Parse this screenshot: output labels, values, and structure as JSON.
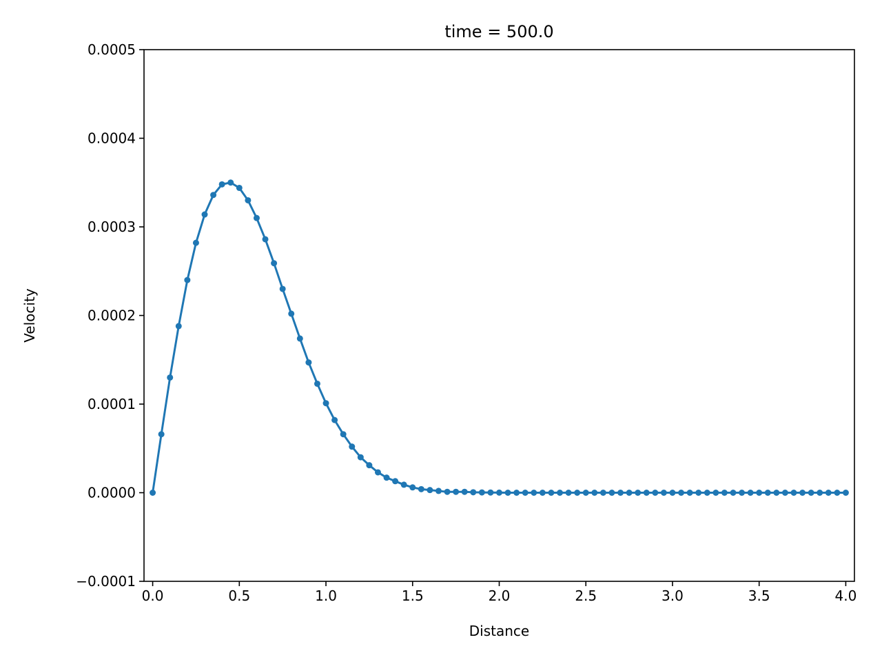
{
  "chart_data": {
    "type": "line",
    "title": "time = 500.0",
    "xlabel": "Distance",
    "ylabel": "Velocity",
    "xlim": [
      -0.05,
      4.05
    ],
    "ylim": [
      -0.0001,
      0.0005
    ],
    "grid": false,
    "legend": "none",
    "xticks": [
      "0.0",
      "0.5",
      "1.0",
      "1.5",
      "2.0",
      "2.5",
      "3.0",
      "3.5",
      "4.0"
    ],
    "xtick_values": [
      0.0,
      0.5,
      1.0,
      1.5,
      2.0,
      2.5,
      3.0,
      3.5,
      4.0
    ],
    "yticks": [
      "−0.0001",
      "0.0000",
      "0.0001",
      "0.0002",
      "0.0003",
      "0.0004",
      "0.0005"
    ],
    "ytick_values": [
      -0.0001,
      0.0,
      0.0001,
      0.0002,
      0.0003,
      0.0004,
      0.0005
    ],
    "color": "#1f77b4",
    "series": [
      {
        "marker": "dot",
        "x": [
          0.0,
          0.05,
          0.1,
          0.15,
          0.2,
          0.25,
          0.3,
          0.35,
          0.4,
          0.45,
          0.5,
          0.55,
          0.6,
          0.65,
          0.7,
          0.75,
          0.8,
          0.85,
          0.9,
          0.95,
          1.0,
          1.05,
          1.1,
          1.15,
          1.2,
          1.25,
          1.3,
          1.35,
          1.4,
          1.45,
          1.5,
          1.55,
          1.6,
          1.65,
          1.7,
          1.75,
          1.8,
          1.85,
          1.9,
          1.95,
          2.0,
          2.05,
          2.1,
          2.15,
          2.2,
          2.25,
          2.3,
          2.35,
          2.4,
          2.45,
          2.5,
          2.55,
          2.6,
          2.65,
          2.7,
          2.75,
          2.8,
          2.85,
          2.9,
          2.95,
          3.0,
          3.05,
          3.1,
          3.15,
          3.2,
          3.25,
          3.3,
          3.35,
          3.4,
          3.45,
          3.5,
          3.55,
          3.6,
          3.65,
          3.7,
          3.75,
          3.8,
          3.85,
          3.9,
          3.95,
          4.0
        ],
        "y": [
          0.0,
          6.6e-05,
          0.00013,
          0.000188,
          0.00024,
          0.000282,
          0.000314,
          0.000336,
          0.000348,
          0.00035,
          0.000344,
          0.00033,
          0.00031,
          0.000286,
          0.000259,
          0.00023,
          0.000202,
          0.000174,
          0.000147,
          0.000123,
          0.000101,
          8.2e-05,
          6.6e-05,
          5.2e-05,
          4e-05,
          3.1e-05,
          2.3e-05,
          1.7e-05,
          1.3e-05,
          9e-06,
          6e-06,
          4e-06,
          3e-06,
          2e-06,
          1e-06,
          1e-06,
          1e-06,
          5e-07,
          3e-07,
          2e-07,
          1e-07,
          0.0,
          0.0,
          0.0,
          0.0,
          0.0,
          0.0,
          0.0,
          0.0,
          0.0,
          0.0,
          0.0,
          0.0,
          0.0,
          0.0,
          0.0,
          0.0,
          0.0,
          0.0,
          0.0,
          0.0,
          0.0,
          0.0,
          0.0,
          0.0,
          0.0,
          0.0,
          0.0,
          0.0,
          0.0,
          0.0,
          0.0,
          0.0,
          0.0,
          0.0,
          0.0,
          0.0,
          0.0,
          0.0,
          0.0,
          0.0
        ]
      }
    ]
  }
}
